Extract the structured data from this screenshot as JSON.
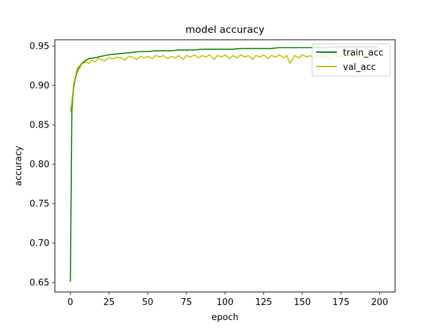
{
  "chart_data": {
    "type": "line",
    "title": "model accuracy",
    "xlabel": "epoch",
    "ylabel": "accuracy",
    "xlim": [
      -10,
      210
    ],
    "ylim": [
      0.638,
      0.958
    ],
    "xticks": [
      0,
      25,
      50,
      75,
      100,
      125,
      150,
      175,
      200
    ],
    "yticks": [
      0.65,
      0.7,
      0.75,
      0.8,
      0.85,
      0.9,
      0.95
    ],
    "xtick_labels": [
      "0",
      "25",
      "50",
      "75",
      "100",
      "125",
      "150",
      "175",
      "200"
    ],
    "ytick_labels": [
      "0.65",
      "0.70",
      "0.75",
      "0.80",
      "0.85",
      "0.90",
      "0.95"
    ],
    "grid": false,
    "legend_position": "top-right",
    "series": [
      {
        "name": "train_acc",
        "color": "#008000",
        "points": [
          [
            0,
            0.651
          ],
          [
            1,
            0.87
          ],
          [
            2,
            0.895
          ],
          [
            3,
            0.907
          ],
          [
            4,
            0.915
          ],
          [
            5,
            0.92
          ],
          [
            6,
            0.924
          ],
          [
            7,
            0.927
          ],
          [
            8,
            0.929
          ],
          [
            10,
            0.932
          ],
          [
            12,
            0.934
          ],
          [
            15,
            0.935
          ],
          [
            18,
            0.936
          ],
          [
            20,
            0.937
          ],
          [
            25,
            0.939
          ],
          [
            30,
            0.94
          ],
          [
            35,
            0.941
          ],
          [
            40,
            0.942
          ],
          [
            45,
            0.943
          ],
          [
            50,
            0.943
          ],
          [
            55,
            0.944
          ],
          [
            60,
            0.944
          ],
          [
            65,
            0.944
          ],
          [
            70,
            0.945
          ],
          [
            75,
            0.945
          ],
          [
            80,
            0.945
          ],
          [
            85,
            0.946
          ],
          [
            90,
            0.946
          ],
          [
            95,
            0.946
          ],
          [
            100,
            0.946
          ],
          [
            105,
            0.946
          ],
          [
            110,
            0.947
          ],
          [
            115,
            0.947
          ],
          [
            120,
            0.947
          ],
          [
            125,
            0.947
          ],
          [
            130,
            0.947
          ],
          [
            135,
            0.948
          ],
          [
            140,
            0.948
          ],
          [
            145,
            0.948
          ],
          [
            150,
            0.948
          ],
          [
            155,
            0.948
          ],
          [
            160,
            0.948
          ],
          [
            165,
            0.948
          ],
          [
            170,
            0.949
          ],
          [
            175,
            0.949
          ],
          [
            180,
            0.949
          ],
          [
            185,
            0.949
          ],
          [
            190,
            0.949
          ],
          [
            195,
            0.949
          ],
          [
            199,
            0.949
          ]
        ]
      },
      {
        "name": "val_acc",
        "color": "#bfbf00",
        "points": [
          [
            0,
            0.866
          ],
          [
            1,
            0.88
          ],
          [
            2,
            0.9
          ],
          [
            3,
            0.91
          ],
          [
            4,
            0.918
          ],
          [
            5,
            0.924
          ],
          [
            6,
            0.921
          ],
          [
            7,
            0.926
          ],
          [
            8,
            0.928
          ],
          [
            10,
            0.93
          ],
          [
            12,
            0.928
          ],
          [
            14,
            0.932
          ],
          [
            16,
            0.93
          ],
          [
            18,
            0.934
          ],
          [
            20,
            0.933
          ],
          [
            22,
            0.931
          ],
          [
            25,
            0.935
          ],
          [
            28,
            0.934
          ],
          [
            30,
            0.936
          ],
          [
            33,
            0.935
          ],
          [
            35,
            0.932
          ],
          [
            38,
            0.937
          ],
          [
            40,
            0.936
          ],
          [
            43,
            0.933
          ],
          [
            45,
            0.937
          ],
          [
            48,
            0.935
          ],
          [
            50,
            0.937
          ],
          [
            53,
            0.934
          ],
          [
            55,
            0.938
          ],
          [
            58,
            0.936
          ],
          [
            60,
            0.938
          ],
          [
            63,
            0.934
          ],
          [
            65,
            0.937
          ],
          [
            68,
            0.935
          ],
          [
            70,
            0.938
          ],
          [
            73,
            0.933
          ],
          [
            75,
            0.938
          ],
          [
            78,
            0.936
          ],
          [
            80,
            0.939
          ],
          [
            83,
            0.935
          ],
          [
            85,
            0.938
          ],
          [
            88,
            0.936
          ],
          [
            90,
            0.939
          ],
          [
            93,
            0.933
          ],
          [
            95,
            0.938
          ],
          [
            98,
            0.936
          ],
          [
            100,
            0.939
          ],
          [
            103,
            0.934
          ],
          [
            105,
            0.938
          ],
          [
            108,
            0.935
          ],
          [
            110,
            0.939
          ],
          [
            113,
            0.936
          ],
          [
            115,
            0.938
          ],
          [
            118,
            0.933
          ],
          [
            120,
            0.938
          ],
          [
            123,
            0.936
          ],
          [
            125,
            0.939
          ],
          [
            128,
            0.934
          ],
          [
            130,
            0.938
          ],
          [
            133,
            0.936
          ],
          [
            135,
            0.939
          ],
          [
            138,
            0.935
          ],
          [
            140,
            0.938
          ],
          [
            142,
            0.928
          ],
          [
            145,
            0.938
          ],
          [
            148,
            0.935
          ],
          [
            150,
            0.939
          ],
          [
            153,
            0.936
          ],
          [
            155,
            0.938
          ],
          [
            158,
            0.934
          ],
          [
            160,
            0.938
          ],
          [
            163,
            0.936
          ],
          [
            165,
            0.938
          ],
          [
            168,
            0.934
          ],
          [
            170,
            0.938
          ],
          [
            175,
            0.936
          ],
          [
            180,
            0.938
          ],
          [
            185,
            0.936
          ],
          [
            190,
            0.938
          ],
          [
            195,
            0.936
          ],
          [
            199,
            0.938
          ]
        ]
      }
    ]
  }
}
